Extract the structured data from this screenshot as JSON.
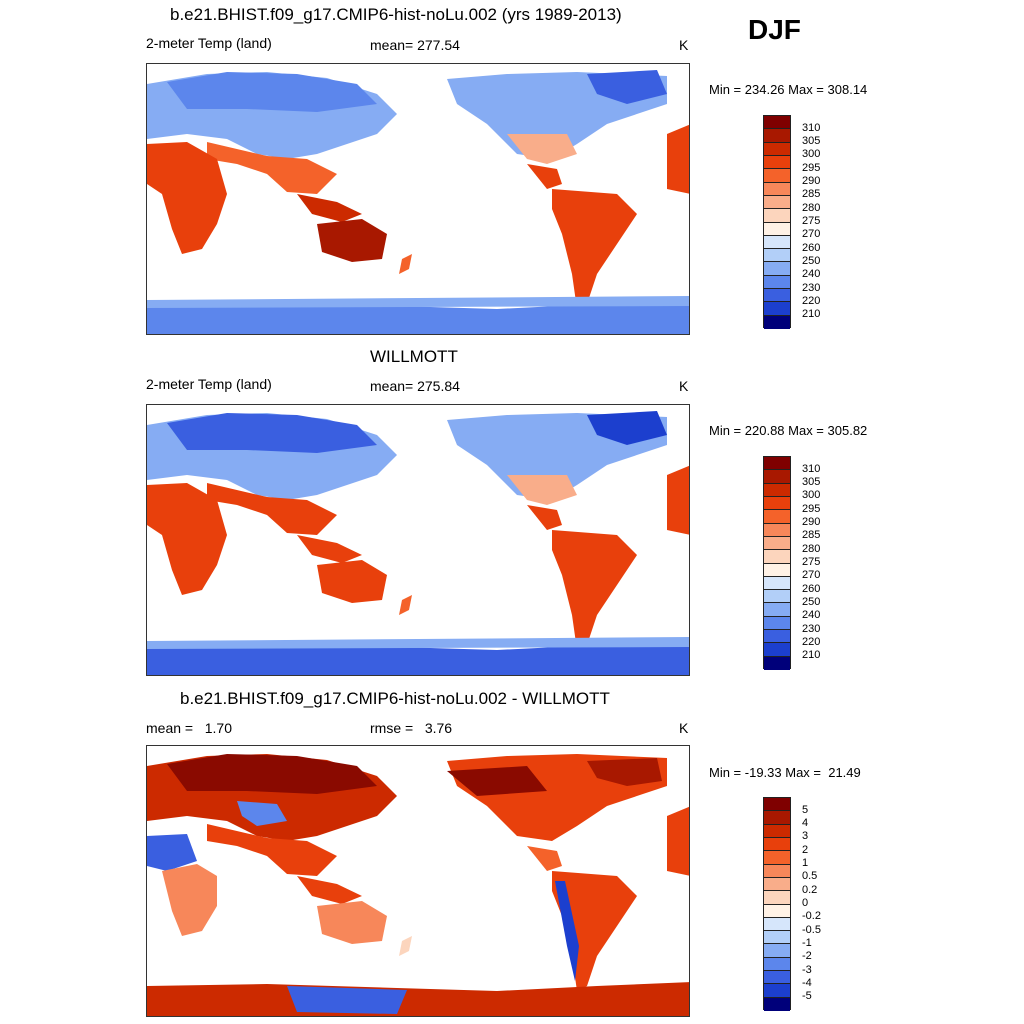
{
  "season": "DJF",
  "panels": [
    {
      "title": "b.e21.BHIST.f09_g17.CMIP6-hist-noLu.002 (yrs 1989-2013)",
      "left_label": "2-meter Temp (land)",
      "center_label": "mean= 277.54",
      "units": "K",
      "minmax": "Min = 234.26 Max = 308.14",
      "colorbar": {
        "labels": [
          "310",
          "305",
          "300",
          "295",
          "290",
          "285",
          "280",
          "275",
          "270",
          "260",
          "250",
          "240",
          "230",
          "220",
          "210"
        ],
        "colors": [
          "#7f0000",
          "#a81800",
          "#cc2a00",
          "#e8400c",
          "#f4622a",
          "#f7875a",
          "#f9ad8a",
          "#fcd5bd",
          "#fff2e6",
          "#d6e6fb",
          "#b2cff8",
          "#86acf3",
          "#5c86ec",
          "#3a5fe0",
          "#1c3fce",
          "#00007a"
        ]
      }
    },
    {
      "title": "WILLMOTT",
      "left_label": "2-meter Temp (land)",
      "center_label": "mean= 275.84",
      "units": "K",
      "minmax": "Min = 220.88 Max = 305.82",
      "colorbar": {
        "labels": [
          "310",
          "305",
          "300",
          "295",
          "290",
          "285",
          "280",
          "275",
          "270",
          "260",
          "250",
          "240",
          "230",
          "220",
          "210"
        ],
        "colors": [
          "#7f0000",
          "#a81800",
          "#cc2a00",
          "#e8400c",
          "#f4622a",
          "#f7875a",
          "#f9ad8a",
          "#fcd5bd",
          "#fff2e6",
          "#d6e6fb",
          "#b2cff8",
          "#86acf3",
          "#5c86ec",
          "#3a5fe0",
          "#1c3fce",
          "#00007a"
        ]
      }
    },
    {
      "title": "b.e21.BHIST.f09_g17.CMIP6-hist-noLu.002 - WILLMOTT",
      "left_label": "mean =   1.70",
      "center_label": "rmse =   3.76",
      "units": "K",
      "minmax": "Min = -19.33 Max =  21.49",
      "colorbar": {
        "labels": [
          "5",
          "4",
          "3",
          "2",
          "1",
          "0.5",
          "0.2",
          "0",
          "-0.2",
          "-0.5",
          "-1",
          "-2",
          "-3",
          "-4",
          "-5"
        ],
        "colors": [
          "#7f0000",
          "#a81800",
          "#cc2a00",
          "#e8400c",
          "#f4622a",
          "#f7875a",
          "#f9ad8a",
          "#fcd5bd",
          "#fff2e6",
          "#d6e6fb",
          "#b2cff8",
          "#86acf3",
          "#5c86ec",
          "#3a5fe0",
          "#1c3fce",
          "#00007a"
        ]
      }
    }
  ],
  "map_colors": {
    "warm_dark": "#cc2a00",
    "warm_mid": "#e8400c",
    "warm_light": "#f7875a",
    "cool_light": "#b2cff8",
    "cool_mid": "#86acf3",
    "cool_dark": "#3a5fe0",
    "hot_core": "#a81800",
    "deep_red": "#8a0a00"
  }
}
